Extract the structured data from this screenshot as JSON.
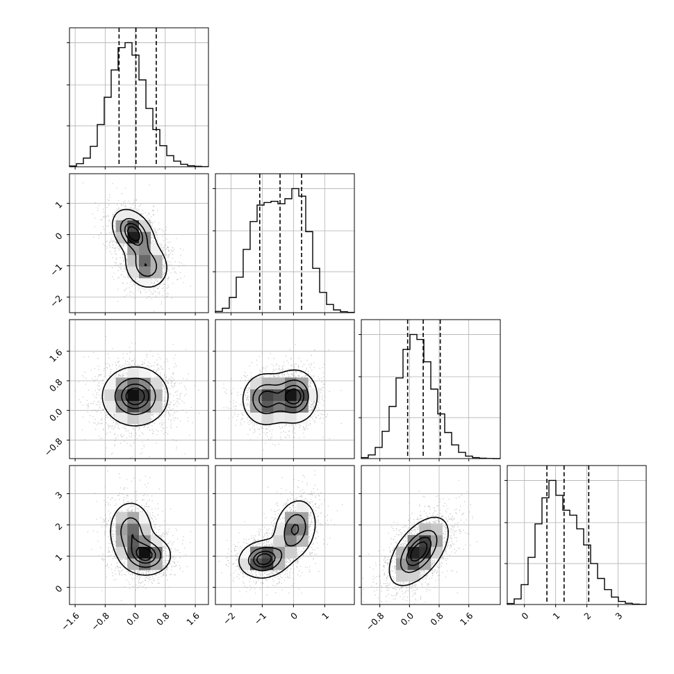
{
  "chart_data": {
    "type": "corner",
    "parameters": 4,
    "grid": true,
    "background_color": "#ffffff",
    "ink_color": "#000000",
    "grid_color": "#b0b0b0",
    "axes": [
      {
        "min": -1.75,
        "max": 1.95,
        "ticks": [
          -1.6,
          -0.8,
          0.0,
          0.8,
          1.6
        ],
        "tick_labels": [
          "−1.6",
          "−0.8",
          "0.0",
          "0.8",
          "1.6"
        ]
      },
      {
        "min": -2.5,
        "max": 1.95,
        "ticks": [
          -2,
          -1,
          0,
          1
        ],
        "tick_labels": [
          "−2",
          "−1",
          "0",
          "1"
        ]
      },
      {
        "min": -1.3,
        "max": 2.45,
        "ticks": [
          -0.8,
          0.0,
          0.8,
          1.6
        ],
        "tick_labels": [
          "−0.8",
          "0.0",
          "0.8",
          "1.6"
        ]
      },
      {
        "min": -0.55,
        "max": 3.9,
        "ticks": [
          0,
          1,
          2,
          3
        ],
        "tick_labels": [
          "0",
          "1",
          "2",
          "3"
        ]
      }
    ],
    "histograms": [
      {
        "param": 0,
        "bin_edges_range": [
          -1.75,
          1.95
        ],
        "bins": 20,
        "counts": [
          6,
          25,
          70,
          165,
          340,
          560,
          780,
          960,
          1000,
          900,
          700,
          470,
          300,
          170,
          90,
          45,
          20,
          8,
          4,
          1
        ],
        "quantiles": [
          -0.43,
          0.02,
          0.56
        ]
      },
      {
        "param": 1,
        "bin_edges_range": [
          -2.5,
          1.95
        ],
        "bins": 20,
        "counts": [
          10,
          35,
          120,
          280,
          500,
          720,
          850,
          870,
          880,
          860,
          900,
          980,
          920,
          640,
          350,
          160,
          65,
          22,
          8,
          2
        ],
        "quantiles": [
          -1.08,
          -0.43,
          0.26
        ]
      },
      {
        "param": 2,
        "bin_edges_range": [
          -1.3,
          2.45
        ],
        "bins": 20,
        "counts": [
          8,
          30,
          90,
          220,
          420,
          650,
          880,
          1000,
          960,
          780,
          560,
          360,
          210,
          110,
          50,
          20,
          8,
          3,
          1,
          0
        ],
        "quantiles": [
          -0.05,
          0.37,
          0.83
        ]
      },
      {
        "param": 3,
        "bin_edges_range": [
          -0.55,
          3.9
        ],
        "bins": 20,
        "counts": [
          8,
          45,
          160,
          380,
          650,
          860,
          1000,
          880,
          760,
          720,
          610,
          480,
          330,
          210,
          120,
          60,
          25,
          10,
          3,
          1
        ],
        "quantiles": [
          0.72,
          1.27,
          2.06
        ]
      }
    ],
    "pairs": [
      {
        "x": 0,
        "y": 1,
        "shape": "anticorrelated elongated blob with twin peaks",
        "components": [
          {
            "mx": -0.05,
            "my": 0.05,
            "sx": 0.28,
            "sy": 0.38,
            "rho": -0.35,
            "w": 1.0
          },
          {
            "mx": 0.3,
            "my": -1.0,
            "sx": 0.3,
            "sy": 0.38,
            "rho": -0.1,
            "w": 0.7
          }
        ]
      },
      {
        "x": 0,
        "y": 2,
        "shape": "round blob",
        "components": [
          {
            "mx": 0.0,
            "my": 0.38,
            "sx": 0.44,
            "sy": 0.4,
            "rho": 0.0,
            "w": 1.0
          }
        ]
      },
      {
        "x": 0,
        "y": 3,
        "shape": "L-shaped bimodal blob",
        "components": [
          {
            "mx": 0.3,
            "my": 1.02,
            "sx": 0.33,
            "sy": 0.32,
            "rho": 0.0,
            "w": 1.0
          },
          {
            "mx": -0.12,
            "my": 1.8,
            "sx": 0.3,
            "sy": 0.5,
            "rho": 0.0,
            "w": 0.75
          }
        ]
      },
      {
        "x": 1,
        "y": 2,
        "shape": "horizontally bimodal blob",
        "components": [
          {
            "mx": -0.9,
            "my": 0.3,
            "sx": 0.38,
            "sy": 0.36,
            "rho": 0.0,
            "w": 0.85
          },
          {
            "mx": 0.05,
            "my": 0.38,
            "sx": 0.36,
            "sy": 0.36,
            "rho": 0.0,
            "w": 1.0
          }
        ]
      },
      {
        "x": 1,
        "y": 3,
        "shape": "diagonal bimodal band",
        "components": [
          {
            "mx": -0.95,
            "my": 0.9,
            "sx": 0.4,
            "sy": 0.3,
            "rho": 0.1,
            "w": 1.0
          },
          {
            "mx": 0.05,
            "my": 1.85,
            "sx": 0.35,
            "sy": 0.5,
            "rho": 0.2,
            "w": 0.75
          }
        ]
      },
      {
        "x": 2,
        "y": 3,
        "shape": "positively correlated blob",
        "components": [
          {
            "mx": 0.25,
            "my": 1.15,
            "sx": 0.4,
            "sy": 0.55,
            "rho": 0.55,
            "w": 1.0
          }
        ]
      }
    ],
    "contour_levels": [
      0.25,
      0.5,
      0.75,
      0.9
    ]
  }
}
